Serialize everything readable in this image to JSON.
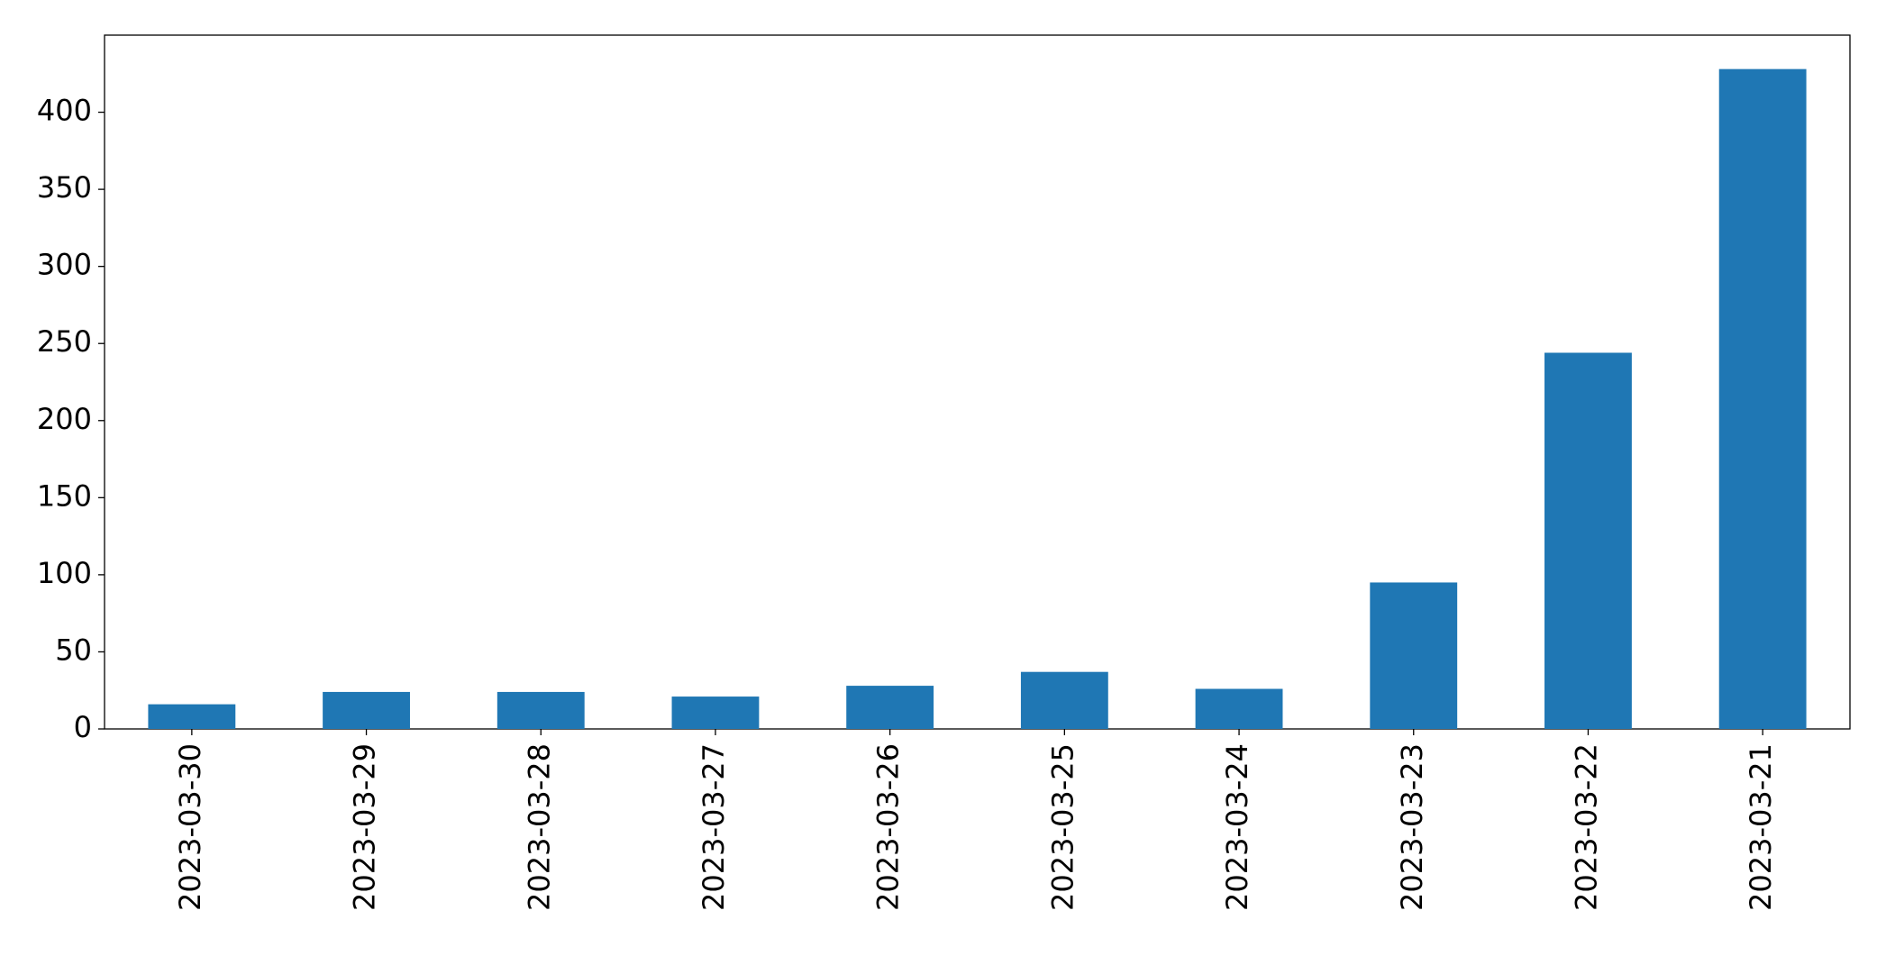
{
  "chart_data": {
    "type": "bar",
    "categories": [
      "2023-03-30",
      "2023-03-29",
      "2023-03-28",
      "2023-03-27",
      "2023-03-26",
      "2023-03-25",
      "2023-03-24",
      "2023-03-23",
      "2023-03-22",
      "2023-03-21"
    ],
    "values": [
      16,
      24,
      24,
      21,
      28,
      37,
      26,
      95,
      244,
      428
    ],
    "color": "#1f77b4",
    "ylim": [
      0,
      450
    ],
    "yticks": [
      0,
      50,
      100,
      150,
      200,
      250,
      300,
      350,
      400
    ],
    "grid": false
  }
}
